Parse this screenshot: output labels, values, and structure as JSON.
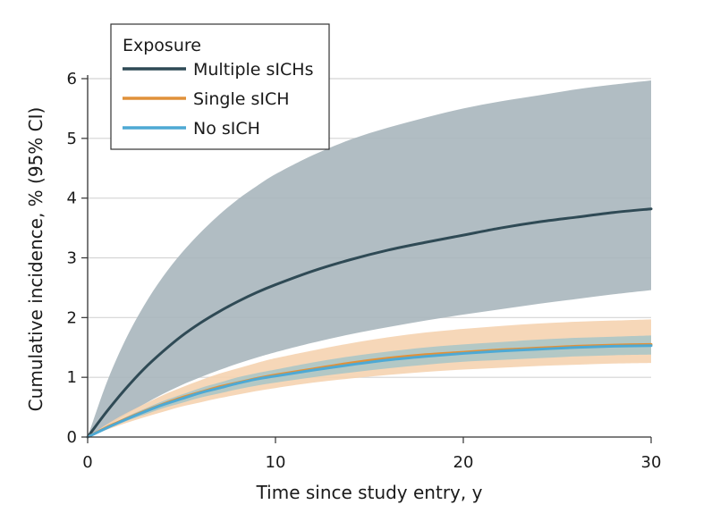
{
  "chart_data": {
    "type": "line",
    "xlabel": "Time since study entry, y",
    "ylabel": "Cumulative incidence, % (95% CI)",
    "xlim": [
      0,
      30
    ],
    "ylim": [
      0,
      6
    ],
    "xticks": [
      0,
      10,
      20,
      30
    ],
    "yticks": [
      0,
      1,
      2,
      3,
      4,
      5,
      6
    ],
    "grid": "horizontal",
    "legend": {
      "title": "Exposure",
      "placement": "top-left"
    },
    "x": [
      0,
      1,
      2,
      3,
      4,
      5,
      6,
      7,
      8,
      9,
      10,
      12,
      14,
      16,
      18,
      20,
      22,
      24,
      26,
      28,
      30
    ],
    "series": [
      {
        "name": "Multiple sICHs",
        "color": "#2f4a55",
        "band_color": "#a9b6bd",
        "values": [
          0,
          0.42,
          0.8,
          1.14,
          1.43,
          1.69,
          1.91,
          2.1,
          2.27,
          2.42,
          2.55,
          2.78,
          2.97,
          3.13,
          3.26,
          3.38,
          3.5,
          3.6,
          3.68,
          3.76,
          3.82
        ],
        "lower": [
          0,
          0.18,
          0.37,
          0.55,
          0.72,
          0.87,
          1.0,
          1.12,
          1.23,
          1.33,
          1.42,
          1.58,
          1.72,
          1.84,
          1.95,
          2.05,
          2.14,
          2.23,
          2.31,
          2.39,
          2.46
        ],
        "upper": [
          0,
          0.9,
          1.62,
          2.2,
          2.68,
          3.08,
          3.42,
          3.72,
          3.98,
          4.2,
          4.4,
          4.72,
          4.98,
          5.18,
          5.35,
          5.5,
          5.62,
          5.72,
          5.82,
          5.9,
          5.97
        ]
      },
      {
        "name": "Single sICH",
        "color": "#e0913a",
        "band_color": "#f5d3b0",
        "values": [
          0,
          0.16,
          0.3,
          0.43,
          0.55,
          0.66,
          0.75,
          0.84,
          0.91,
          0.98,
          1.04,
          1.14,
          1.24,
          1.32,
          1.38,
          1.42,
          1.46,
          1.49,
          1.52,
          1.54,
          1.55
        ],
        "lower": [
          0,
          0.12,
          0.23,
          0.33,
          0.42,
          0.51,
          0.58,
          0.65,
          0.71,
          0.77,
          0.82,
          0.91,
          0.98,
          1.04,
          1.09,
          1.13,
          1.16,
          1.19,
          1.21,
          1.23,
          1.24
        ],
        "upper": [
          0,
          0.21,
          0.39,
          0.55,
          0.7,
          0.83,
          0.95,
          1.06,
          1.15,
          1.24,
          1.32,
          1.45,
          1.57,
          1.67,
          1.75,
          1.81,
          1.86,
          1.9,
          1.93,
          1.95,
          1.97
        ]
      },
      {
        "name": "No sICH",
        "color": "#4ea9d4",
        "band_color": "#9cc3c9",
        "values": [
          0,
          0.15,
          0.29,
          0.42,
          0.54,
          0.64,
          0.74,
          0.82,
          0.9,
          0.97,
          1.02,
          1.12,
          1.21,
          1.29,
          1.35,
          1.4,
          1.44,
          1.47,
          1.5,
          1.52,
          1.53
        ],
        "lower": [
          0,
          0.13,
          0.26,
          0.37,
          0.48,
          0.57,
          0.66,
          0.73,
          0.8,
          0.86,
          0.91,
          1.0,
          1.08,
          1.15,
          1.21,
          1.26,
          1.29,
          1.32,
          1.35,
          1.37,
          1.38
        ],
        "upper": [
          0,
          0.17,
          0.33,
          0.47,
          0.6,
          0.71,
          0.82,
          0.91,
          1.0,
          1.07,
          1.13,
          1.25,
          1.35,
          1.43,
          1.5,
          1.55,
          1.59,
          1.63,
          1.66,
          1.68,
          1.7
        ]
      }
    ]
  }
}
